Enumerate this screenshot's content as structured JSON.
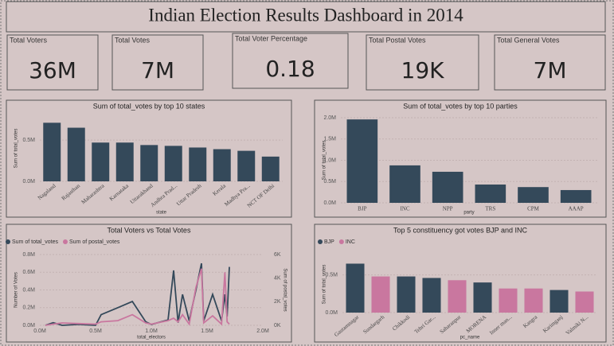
{
  "title": "Indian Election Results Dashboard in 2014",
  "kpis": [
    {
      "label": "Total Voters",
      "value": "36M"
    },
    {
      "label": "Total Votes",
      "value": "7M"
    },
    {
      "label": "Total Voter Percentage",
      "value": "0.18"
    },
    {
      "label": "Total Postal Votes",
      "value": "19K"
    },
    {
      "label": "Total General Votes",
      "value": "7M"
    }
  ],
  "chart_data": [
    {
      "type": "bar",
      "title": "Sum of total_votes by top 10 states",
      "x_label": "state",
      "y_label": "Sum of total_votes",
      "categories": [
        "Nagaland",
        "Rajasthan",
        "Maharashtra",
        "Karnataka",
        "Uttarakhand",
        "Andhra Prad...",
        "Uttar Pradesh",
        "Kerala",
        "Madhya Pra...",
        "NCT OF Delhi"
      ],
      "series": [
        {
          "color": "#34495a",
          "values": [
            710000,
            650000,
            470000,
            470000,
            440000,
            430000,
            410000,
            390000,
            370000,
            300000
          ]
        }
      ],
      "ylim": [
        0,
        800000
      ],
      "yticks": [
        {
          "value": 0,
          "label": "0.0M"
        },
        {
          "value": 500000,
          "label": "0.5M"
        }
      ]
    },
    {
      "type": "bar",
      "title": "Sum of total_votes by top 10 parties",
      "x_label": "party",
      "y_label": "Sum of total_votes",
      "categories": [
        "BJP",
        "INC",
        "NPP",
        "TRS",
        "CPM",
        "AAAP"
      ],
      "series": [
        {
          "color": "#34495a",
          "values": [
            1960000,
            880000,
            730000,
            430000,
            370000,
            300000
          ]
        }
      ],
      "ylim": [
        0,
        2000000
      ],
      "yticks": [
        {
          "value": 0,
          "label": "0.0M"
        },
        {
          "value": 500000,
          "label": "0.5M"
        },
        {
          "value": 1000000,
          "label": "1.0M"
        },
        {
          "value": 1500000,
          "label": "1.5M"
        },
        {
          "value": 2000000,
          "label": "2.0M"
        }
      ]
    },
    {
      "type": "line",
      "title": "Total Voters vs Total Votes",
      "x_label": "total_electors",
      "y_label": "Number of Votes",
      "y2_label": "Sum of postal_votes",
      "x": [
        50000,
        120000,
        200000,
        350000,
        500000,
        550000,
        700000,
        830000,
        950000,
        1000000,
        1150000,
        1200000,
        1240000,
        1280000,
        1340000,
        1400000,
        1450000,
        1470000,
        1550000,
        1630000,
        1660000,
        1680000,
        1700000
      ],
      "series": [
        {
          "name": "Sum of total_votes",
          "color": "#34495a",
          "values": [
            0,
            30000,
            0,
            10000,
            0,
            120000,
            200000,
            270000,
            40000,
            10000,
            60000,
            620000,
            30000,
            350000,
            50000,
            400000,
            700000,
            50000,
            350000,
            50000,
            350000,
            100000,
            660000
          ]
        },
        {
          "name": "Sum of postal_votes",
          "color": "#c9779f",
          "axis": "y2",
          "values": [
            0,
            100,
            200,
            150,
            100,
            300,
            400,
            900,
            200,
            100,
            400,
            600,
            300,
            900,
            100,
            3200,
            4800,
            200,
            800,
            100,
            4500,
            300,
            100
          ]
        }
      ],
      "xlim": [
        0,
        2000000
      ],
      "xticks": [
        {
          "value": 0,
          "label": "0.0M"
        },
        {
          "value": 500000,
          "label": "0.5M"
        },
        {
          "value": 1000000,
          "label": "1.0M"
        },
        {
          "value": 1500000,
          "label": "1.5M"
        },
        {
          "value": 2000000,
          "label": "2.0M"
        }
      ],
      "ylim": [
        0,
        800000
      ],
      "yticks": [
        {
          "value": 0,
          "label": "0.0M"
        },
        {
          "value": 200000,
          "label": "0.2M"
        },
        {
          "value": 400000,
          "label": "0.4M"
        },
        {
          "value": 600000,
          "label": "0.6M"
        },
        {
          "value": 800000,
          "label": "0.8M"
        }
      ],
      "y2lim": [
        0,
        6000
      ],
      "y2ticks": [
        {
          "value": 0,
          "label": "0K"
        },
        {
          "value": 2000,
          "label": "2K"
        },
        {
          "value": 4000,
          "label": "4K"
        },
        {
          "value": 6000,
          "label": "6K"
        }
      ]
    },
    {
      "type": "bar",
      "title": "Top 5 constituency got votes BJP and INC",
      "x_label": "pc_name",
      "y_label": "Sum of total_votes",
      "categories": [
        "Gautamnagar",
        "Sundargarh",
        "Chikkodi",
        "Tehri Gar...",
        "Saharanpur",
        "MORENA",
        "Inner man...",
        "Kangra",
        "Karimganj",
        "Valmiki N..."
      ],
      "series": [
        {
          "name": "BJP",
          "color": "#34495a",
          "values": [
            650000,
            null,
            480000,
            460000,
            null,
            400000,
            null,
            null,
            300000,
            null
          ]
        },
        {
          "name": "INC",
          "color": "#c9779f",
          "values": [
            null,
            480000,
            null,
            null,
            430000,
            null,
            320000,
            320000,
            null,
            280000
          ]
        }
      ],
      "ylim": [
        0,
        750000
      ],
      "yticks": [
        {
          "value": 0,
          "label": "0.0M"
        },
        {
          "value": 500000,
          "label": "0.5M"
        }
      ]
    }
  ]
}
